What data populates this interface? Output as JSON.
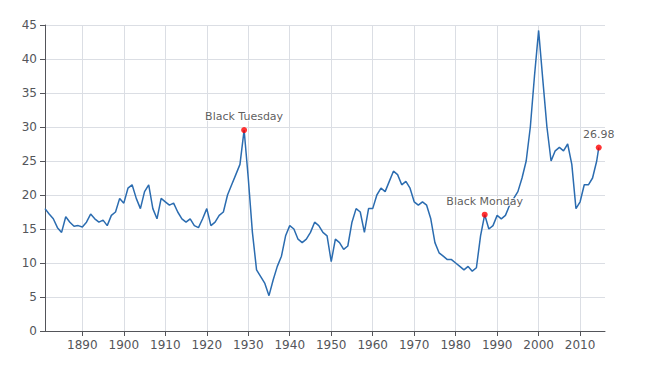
{
  "chart_data": {
    "type": "line",
    "color": "#2b6cb0",
    "x": [
      1881,
      1882,
      1883,
      1884,
      1885,
      1886,
      1887,
      1888,
      1889,
      1890,
      1891,
      1892,
      1893,
      1894,
      1895,
      1896,
      1897,
      1898,
      1899,
      1900,
      1901,
      1902,
      1903,
      1904,
      1905,
      1906,
      1907,
      1908,
      1909,
      1910,
      1911,
      1912,
      1913,
      1914,
      1915,
      1916,
      1917,
      1918,
      1919,
      1920,
      1921,
      1922,
      1923,
      1924,
      1925,
      1926,
      1927,
      1928,
      1929,
      1930,
      1931,
      1932,
      1933,
      1934,
      1935,
      1936,
      1937,
      1938,
      1939,
      1940,
      1941,
      1942,
      1943,
      1944,
      1945,
      1946,
      1947,
      1948,
      1949,
      1950,
      1951,
      1952,
      1953,
      1954,
      1955,
      1956,
      1957,
      1958,
      1959,
      1960,
      1961,
      1962,
      1963,
      1964,
      1965,
      1966,
      1967,
      1968,
      1969,
      1970,
      1971,
      1972,
      1973,
      1974,
      1975,
      1976,
      1977,
      1978,
      1979,
      1980,
      1981,
      1982,
      1983,
      1984,
      1985,
      1986,
      1987,
      1988,
      1989,
      1990,
      1991,
      1992,
      1993,
      1994,
      1995,
      1996,
      1997,
      1998,
      1999,
      2000,
      2001,
      2002,
      2003,
      2004,
      2005,
      2006,
      2007,
      2008,
      2009,
      2010,
      2011,
      2012,
      2013,
      2014,
      2014.5
    ],
    "values": [
      18.0,
      17.2,
      16.5,
      15.2,
      14.5,
      16.8,
      16.0,
      15.4,
      15.5,
      15.3,
      16.0,
      17.2,
      16.5,
      16.0,
      16.3,
      15.5,
      17.0,
      17.5,
      19.5,
      18.8,
      21.0,
      21.5,
      19.5,
      18.0,
      20.5,
      21.5,
      18.0,
      16.5,
      19.5,
      19.0,
      18.5,
      18.8,
      17.5,
      16.5,
      16.0,
      16.5,
      15.5,
      15.2,
      16.5,
      18.0,
      15.5,
      16.0,
      17.0,
      17.5,
      20.0,
      21.5,
      23.0,
      24.5,
      29.55,
      22.5,
      14.5,
      9.0,
      8.0,
      7.0,
      5.2,
      7.5,
      9.5,
      11.0,
      14.0,
      15.5,
      15.0,
      13.5,
      13.0,
      13.5,
      14.5,
      16.0,
      15.5,
      14.5,
      14.0,
      10.2,
      13.5,
      13.0,
      12.0,
      12.5,
      16.0,
      18.0,
      17.5,
      14.5,
      18.0,
      18.0,
      20.0,
      21.0,
      20.5,
      22.0,
      23.5,
      23.0,
      21.5,
      22.0,
      21.0,
      19.0,
      18.5,
      19.0,
      18.5,
      16.5,
      13.0,
      11.5,
      11.0,
      10.5,
      10.5,
      10.0,
      9.5,
      9.0,
      9.5,
      8.8,
      9.3,
      14.0,
      17.1,
      15.0,
      15.5,
      17.0,
      16.5,
      17.0,
      18.5,
      19.5,
      20.5,
      22.5,
      25.0,
      30.0,
      37.5,
      44.2,
      37.0,
      30.0,
      25.0,
      26.5,
      27.0,
      26.5,
      27.5,
      24.5,
      18.0,
      19.0,
      21.5,
      21.5,
      22.5,
      25.0,
      26.98
    ],
    "xlim": [
      1881,
      2016
    ],
    "ylim": [
      0,
      45
    ],
    "xticks": [
      1890,
      1900,
      1910,
      1920,
      1930,
      1940,
      1950,
      1960,
      1970,
      1980,
      1990,
      2000,
      2010
    ],
    "yticks": [
      0,
      5,
      10,
      15,
      20,
      25,
      30,
      35,
      40,
      45
    ],
    "grid": true,
    "annotations": [
      {
        "text": "Black Tuesday",
        "x": 1929,
        "y": 29.55,
        "color": "#ff0000"
      },
      {
        "text": "Black Monday",
        "x": 1987,
        "y": 17.1,
        "color": "#ff0000"
      },
      {
        "text": "26.98",
        "x": 2014.5,
        "y": 26.98,
        "color": "#ff0000"
      }
    ]
  }
}
